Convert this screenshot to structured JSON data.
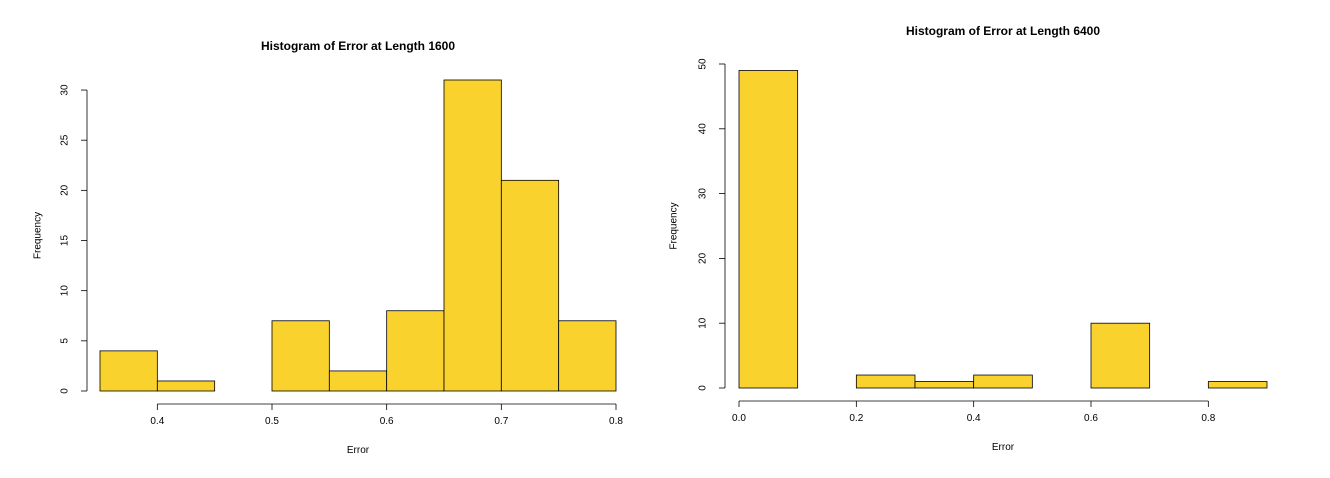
{
  "chart_data": [
    {
      "type": "bar",
      "title": "Histogram of Error at Length 1600",
      "xlabel": "Error",
      "ylabel": "Frequency",
      "bins": [
        [
          0.35,
          0.4
        ],
        [
          0.4,
          0.45
        ],
        [
          0.45,
          0.5
        ],
        [
          0.5,
          0.55
        ],
        [
          0.55,
          0.6
        ],
        [
          0.6,
          0.65
        ],
        [
          0.65,
          0.7
        ],
        [
          0.7,
          0.75
        ],
        [
          0.75,
          0.8
        ]
      ],
      "values": [
        4,
        1,
        0,
        7,
        2,
        8,
        31,
        21,
        7
      ],
      "xlim": [
        0.35,
        0.8
      ],
      "ylim": [
        0,
        31
      ],
      "xticks": [
        0.4,
        0.5,
        0.6,
        0.7,
        0.8
      ],
      "xtick_labels": [
        "0.4",
        "0.5",
        "0.6",
        "0.7",
        "0.8"
      ],
      "yticks": [
        0,
        5,
        10,
        15,
        20,
        25,
        30
      ],
      "ytick_labels": [
        "0",
        "5",
        "10",
        "15",
        "20",
        "25",
        "30"
      ],
      "bar_color": "#F9D22E",
      "grid": false
    },
    {
      "type": "bar",
      "title": "Histogram of Error at Length 6400",
      "xlabel": "Error",
      "ylabel": "Frequency",
      "bins": [
        [
          0.0,
          0.1
        ],
        [
          0.1,
          0.2
        ],
        [
          0.2,
          0.3
        ],
        [
          0.3,
          0.4
        ],
        [
          0.4,
          0.5
        ],
        [
          0.5,
          0.6
        ],
        [
          0.6,
          0.7
        ],
        [
          0.7,
          0.8
        ],
        [
          0.8,
          0.9
        ]
      ],
      "values": [
        49,
        0,
        2,
        1,
        2,
        0,
        10,
        0,
        1
      ],
      "xlim": [
        0.0,
        0.9
      ],
      "ylim": [
        0,
        50
      ],
      "xticks": [
        0.0,
        0.2,
        0.4,
        0.6,
        0.8
      ],
      "xtick_labels": [
        "0.0",
        "0.2",
        "0.4",
        "0.6",
        "0.8"
      ],
      "yticks": [
        0,
        10,
        20,
        30,
        40,
        50
      ],
      "ytick_labels": [
        "0",
        "10",
        "20",
        "30",
        "40",
        "50"
      ],
      "bar_color": "#F9D22E",
      "grid": false
    }
  ]
}
